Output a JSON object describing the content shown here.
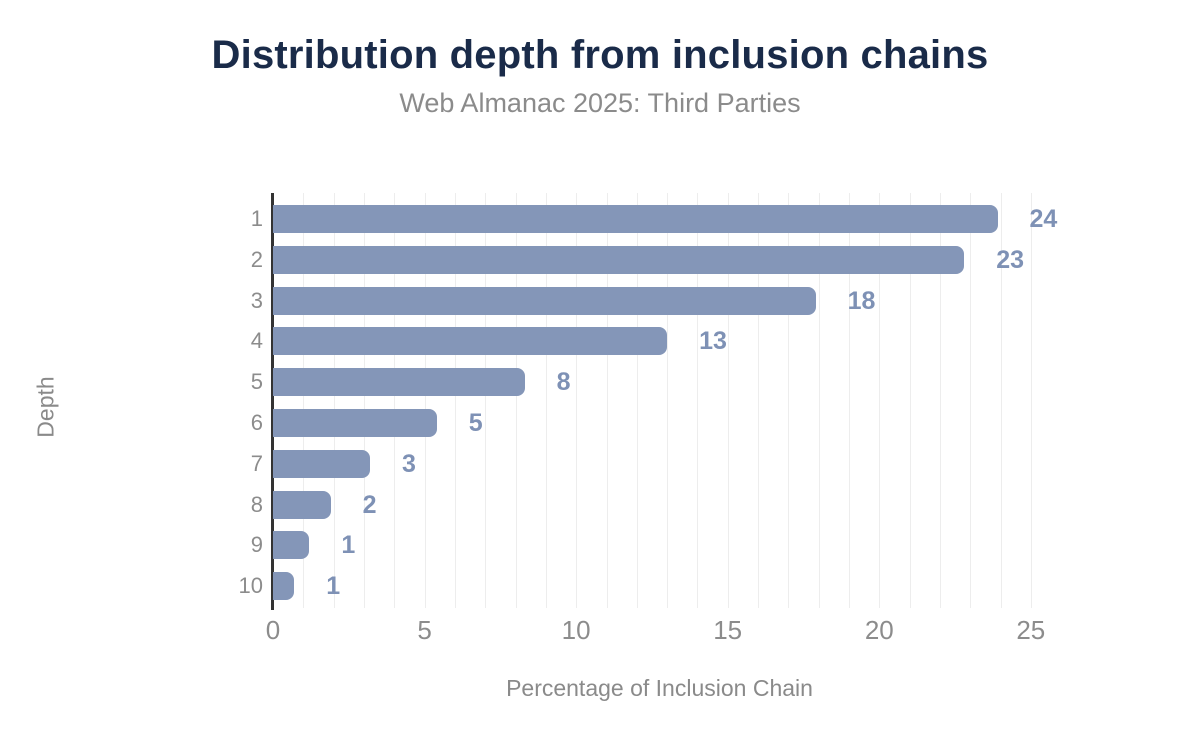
{
  "header": {
    "title": "Distribution depth from inclusion chains",
    "subtitle": "Web Almanac 2025: Third Parties"
  },
  "chart_data": {
    "type": "bar",
    "orientation": "horizontal",
    "title": "Distribution depth from inclusion chains",
    "subtitle": "Web Almanac 2025: Third Parties",
    "xlabel": "Percentage of Inclusion Chain",
    "ylabel": "Depth",
    "categories": [
      "1",
      "2",
      "3",
      "4",
      "5",
      "6",
      "7",
      "8",
      "9",
      "10"
    ],
    "values": [
      23.9,
      22.8,
      17.9,
      13.0,
      8.3,
      5.4,
      3.2,
      1.9,
      1.2,
      0.7
    ],
    "value_labels": [
      "24",
      "23",
      "18",
      "13",
      "8",
      "5",
      "3",
      "2",
      "1",
      "1"
    ],
    "xticks": [
      0,
      5,
      10,
      15,
      20,
      25
    ],
    "xlim": [
      0,
      25.5
    ],
    "grid": "minor-vertical",
    "grid_step": 1,
    "legend": "none",
    "colors": {
      "bar": "#8496b8",
      "value_label": "#7e91b5",
      "axis_line": "#333333",
      "gridline": "#ededed",
      "tick_text": "#8c8c8c",
      "title": "#1a2b49",
      "subtitle": "#8b8b8b"
    }
  }
}
